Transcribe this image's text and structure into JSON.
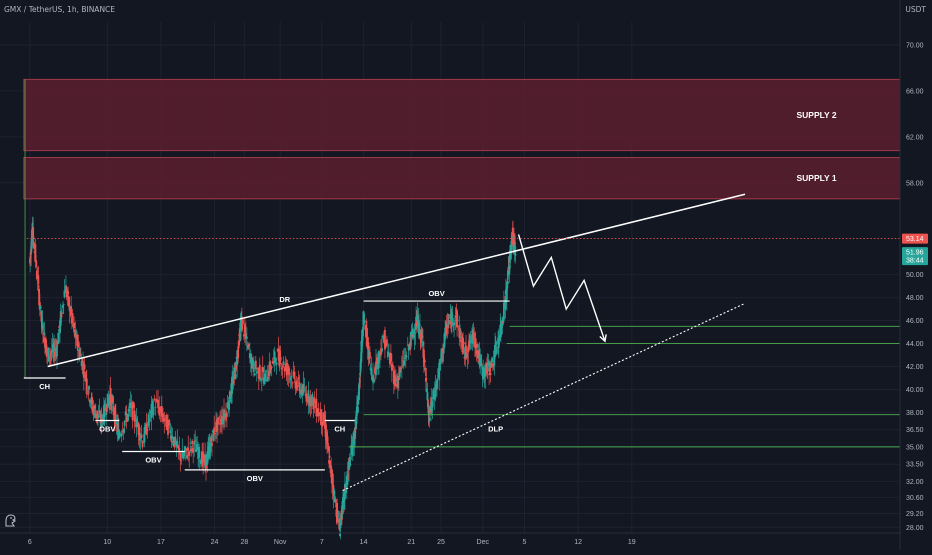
{
  "header": {
    "title": "GMX / TetherUS, 1h, BINANCE",
    "currency": "USDT"
  },
  "colors": {
    "background": "#131722",
    "grid": "#1e2230",
    "up_candle": "#26a69a",
    "down_candle": "#ef5350",
    "supply_fill": "#5c1e2e",
    "supply_border": "#a03848",
    "drawing": "#ffffff",
    "level_line": "#4caf50",
    "price_line": "#ef5350",
    "price_badge": "#ef5350",
    "ask_badge": "#26a69a",
    "axis_text": "#b2b5be"
  },
  "icons": {
    "corner": "tradingview-dino-icon"
  },
  "chart_data": {
    "type": "candlestick",
    "title": "GMX / TetherUS, 1h, BINANCE",
    "ylabel": "USDT",
    "ylim": [
      27.5,
      72.0
    ],
    "grid": true,
    "x_range": [
      5.5,
      20.6
    ],
    "x_ticks": [
      {
        "x": 6,
        "label": "6"
      },
      {
        "x": 7.3,
        "label": "10"
      },
      {
        "x": 8.2,
        "label": "17"
      },
      {
        "x": 9.1,
        "label": "24"
      },
      {
        "x": 9.6,
        "label": "28"
      },
      {
        "x": 10.2,
        "label": "Nov"
      },
      {
        "x": 10.9,
        "label": "7"
      },
      {
        "x": 11.6,
        "label": "14"
      },
      {
        "x": 12.4,
        "label": "21"
      },
      {
        "x": 12.9,
        "label": "25"
      },
      {
        "x": 13.6,
        "label": "Dec"
      },
      {
        "x": 14.3,
        "label": "5"
      },
      {
        "x": 15.2,
        "label": "12"
      },
      {
        "x": 16.1,
        "label": "19"
      }
    ],
    "y_ticks": [
      {
        "value": 70.0,
        "label": "70.00"
      },
      {
        "value": 66.0,
        "label": "66.00"
      },
      {
        "value": 62.0,
        "label": "62.00"
      },
      {
        "value": 58.0,
        "label": "58.00"
      },
      {
        "value": 53.14,
        "label": "53.14"
      },
      {
        "value": 51.96,
        "label": "51.96"
      },
      {
        "value": 50.0,
        "label": "50.00"
      },
      {
        "value": 48.0,
        "label": "48.00"
      },
      {
        "value": 46.0,
        "label": "46.00"
      },
      {
        "value": 44.0,
        "label": "44.00"
      },
      {
        "value": 42.0,
        "label": "42.00"
      },
      {
        "value": 40.0,
        "label": "40.00"
      },
      {
        "value": 38.0,
        "label": "38.00"
      },
      {
        "value": 36.5,
        "label": "36.50"
      },
      {
        "value": 35.0,
        "label": "35.00"
      },
      {
        "value": 33.5,
        "label": "33.50"
      },
      {
        "value": 32.0,
        "label": "32.00"
      },
      {
        "value": 30.6,
        "label": "30.60"
      },
      {
        "value": 29.2,
        "label": "29.20"
      },
      {
        "value": 28.0,
        "label": "28.00"
      }
    ],
    "current_price": 53.14,
    "ask_price": 51.96,
    "countdown": "38:44",
    "price_path": [
      [
        6.0,
        51.0
      ],
      [
        6.05,
        54.0
      ],
      [
        6.2,
        46.0
      ],
      [
        6.3,
        43.0
      ],
      [
        6.45,
        43.5
      ],
      [
        6.6,
        49.0
      ],
      [
        6.75,
        45.0
      ],
      [
        6.9,
        42.0
      ],
      [
        7.05,
        38.5
      ],
      [
        7.2,
        37.2
      ],
      [
        7.35,
        39.5
      ],
      [
        7.5,
        36.0
      ],
      [
        7.7,
        38.5
      ],
      [
        7.9,
        35.5
      ],
      [
        8.1,
        39.0
      ],
      [
        8.35,
        36.5
      ],
      [
        8.55,
        34.0
      ],
      [
        8.75,
        35.2
      ],
      [
        8.95,
        33.5
      ],
      [
        9.1,
        36.5
      ],
      [
        9.3,
        38.0
      ],
      [
        9.45,
        41.5
      ],
      [
        9.55,
        46.0
      ],
      [
        9.75,
        42.0
      ],
      [
        9.95,
        41.0
      ],
      [
        10.15,
        43.0
      ],
      [
        10.35,
        41.5
      ],
      [
        10.55,
        40.0
      ],
      [
        10.75,
        39.0
      ],
      [
        10.95,
        37.0
      ],
      [
        11.05,
        33.0
      ],
      [
        11.2,
        27.8
      ],
      [
        11.3,
        31.5
      ],
      [
        11.45,
        36.0
      ],
      [
        11.52,
        39.5
      ],
      [
        11.6,
        46.5
      ],
      [
        11.75,
        41.0
      ],
      [
        11.95,
        44.5
      ],
      [
        12.15,
        40.5
      ],
      [
        12.35,
        43.5
      ],
      [
        12.5,
        46.0
      ],
      [
        12.6,
        44.0
      ],
      [
        12.7,
        37.5
      ],
      [
        12.85,
        41.0
      ],
      [
        13.0,
        45.5
      ],
      [
        13.15,
        46.5
      ],
      [
        13.3,
        43.0
      ],
      [
        13.45,
        44.8
      ],
      [
        13.6,
        41.5
      ],
      [
        13.75,
        42.0
      ],
      [
        13.9,
        45.0
      ],
      [
        14.0,
        48.5
      ],
      [
        14.1,
        53.5
      ],
      [
        14.15,
        51.96
      ]
    ],
    "zones": [
      {
        "label": "SUPPLY 2",
        "x0": 5.9,
        "x1": 20.6,
        "y0": 60.8,
        "y1": 67.0
      },
      {
        "label": "SUPPLY 1",
        "x0": 5.9,
        "x1": 20.6,
        "y0": 56.6,
        "y1": 60.2
      }
    ],
    "trendlines": [
      {
        "label": "DR",
        "x0": 6.3,
        "y0": 42.0,
        "x1": 18.0,
        "y1": 57.0,
        "style": "solid"
      },
      {
        "label": "DLP",
        "x0": 11.25,
        "y0": 31.2,
        "x1": 18.0,
        "y1": 47.5,
        "style": "dotted"
      }
    ],
    "levels": [
      {
        "label": "CH",
        "x0": 5.9,
        "x1": 6.6,
        "y": 41.0,
        "color": "white"
      },
      {
        "label": "OBV",
        "x0": 7.1,
        "x1": 7.5,
        "y": 37.3,
        "color": "white"
      },
      {
        "label": "OBV",
        "x0": 7.55,
        "x1": 8.6,
        "y": 34.6,
        "color": "white"
      },
      {
        "label": "OBV",
        "x0": 8.6,
        "x1": 10.95,
        "y": 33.0,
        "color": "white"
      },
      {
        "label": "CH",
        "x0": 10.95,
        "x1": 11.45,
        "y": 37.3,
        "color": "white"
      },
      {
        "label": "OBV",
        "x0": 11.6,
        "x1": 14.05,
        "y": 47.7,
        "color": "white"
      },
      {
        "label": "",
        "x0": 11.35,
        "x1": 20.6,
        "y": 35.0,
        "color": "green"
      },
      {
        "label": "",
        "x0": 11.6,
        "x1": 20.6,
        "y": 37.8,
        "color": "green"
      },
      {
        "label": "",
        "x0": 14.0,
        "x1": 20.6,
        "y": 44.0,
        "color": "green"
      },
      {
        "label": "",
        "x0": 14.05,
        "x1": 20.6,
        "y": 45.5,
        "color": "green"
      }
    ],
    "projection": [
      [
        14.2,
        53.5
      ],
      [
        14.45,
        49.0
      ],
      [
        14.75,
        51.5
      ],
      [
        15.0,
        47.0
      ],
      [
        15.3,
        49.5
      ],
      [
        15.65,
        44.2
      ]
    ],
    "annotations": [
      "DR",
      "DLP",
      "CH",
      "OBV",
      "SUPPLY 1",
      "SUPPLY 2"
    ]
  }
}
